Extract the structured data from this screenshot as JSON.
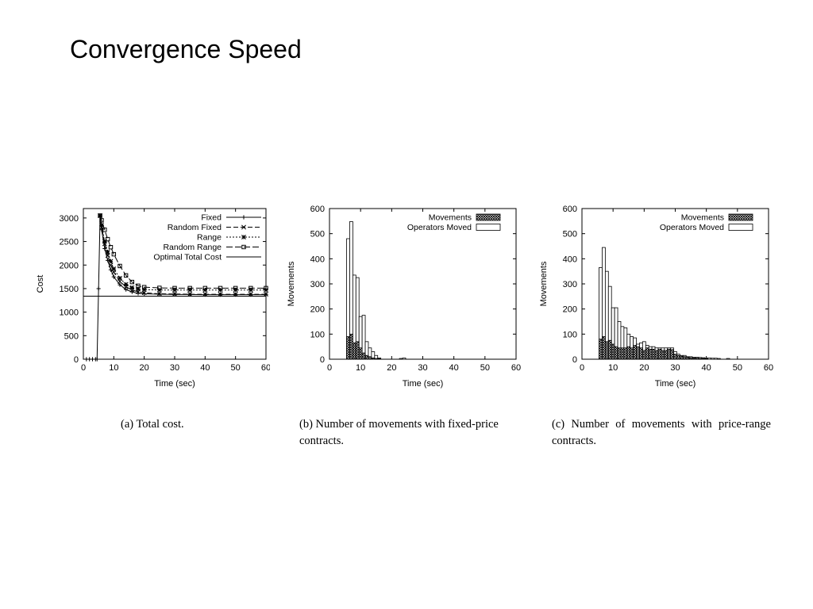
{
  "title": "Convergence Speed",
  "chart_data": [
    {
      "id": "a",
      "type": "line",
      "title": "",
      "xlabel": "Time (sec)",
      "ylabel": "Cost",
      "xlim": [
        0,
        60
      ],
      "ylim": [
        0,
        3200
      ],
      "xticks": [
        0,
        10,
        20,
        30,
        40,
        50,
        60
      ],
      "yticks": [
        0,
        500,
        1000,
        1500,
        2000,
        2500,
        3000
      ],
      "legend_position": "top-right",
      "grid": false,
      "series": [
        {
          "name": "Fixed",
          "marker": "plus",
          "dash": "none",
          "x": [
            1,
            2,
            3,
            4,
            4.5,
            5,
            5.5,
            6,
            7,
            8,
            9,
            10,
            12,
            14,
            16,
            18,
            20,
            25,
            30,
            35,
            40,
            45,
            50,
            55,
            60
          ],
          "y": [
            0,
            0,
            0,
            0,
            0,
            1500,
            3050,
            2750,
            2350,
            2100,
            1900,
            1750,
            1580,
            1480,
            1430,
            1400,
            1390,
            1380,
            1375,
            1375,
            1370,
            1370,
            1370,
            1370,
            1370
          ]
        },
        {
          "name": "Random Fixed",
          "marker": "cross",
          "dash": "6,3",
          "x": [
            5.5,
            6,
            7,
            8,
            9,
            10,
            12,
            14,
            16,
            18,
            20,
            25,
            30,
            35,
            40,
            45,
            50,
            55,
            60
          ],
          "y": [
            3050,
            2800,
            2450,
            2200,
            2000,
            1850,
            1650,
            1540,
            1470,
            1430,
            1410,
            1390,
            1385,
            1380,
            1380,
            1380,
            1380,
            1380,
            1380
          ]
        },
        {
          "name": "Range",
          "marker": "star",
          "dash": "2,2",
          "x": [
            5.5,
            6,
            7,
            8,
            9,
            10,
            12,
            14,
            16,
            18,
            20,
            25,
            30,
            35,
            40,
            45,
            50,
            55,
            60
          ],
          "y": [
            3050,
            2850,
            2500,
            2280,
            2080,
            1920,
            1720,
            1590,
            1520,
            1490,
            1480,
            1470,
            1470,
            1470,
            1470,
            1470,
            1470,
            1470,
            1470
          ]
        },
        {
          "name": "Random Range",
          "marker": "square",
          "dash": "8,3",
          "x": [
            5.5,
            6,
            7,
            8,
            9,
            10,
            12,
            14,
            16,
            18,
            20,
            25,
            30,
            35,
            40,
            45,
            50,
            55,
            60
          ],
          "y": [
            3050,
            2950,
            2750,
            2550,
            2380,
            2230,
            1980,
            1780,
            1640,
            1560,
            1530,
            1515,
            1510,
            1510,
            1510,
            1510,
            1510,
            1510,
            1510
          ]
        },
        {
          "name": "Optimal Total Cost",
          "marker": "none",
          "dash": "none",
          "x": [
            0,
            60
          ],
          "y": [
            1340,
            1340
          ]
        }
      ]
    },
    {
      "id": "b",
      "type": "bar",
      "title": "",
      "xlabel": "Time (sec)",
      "ylabel": "Movements",
      "xlim": [
        0,
        60
      ],
      "ylim": [
        0,
        600
      ],
      "xticks": [
        0,
        10,
        20,
        30,
        40,
        50,
        60
      ],
      "yticks": [
        0,
        100,
        200,
        300,
        400,
        500,
        600
      ],
      "legend_position": "top-right",
      "grid": false,
      "bin_width": 1,
      "series": [
        {
          "name": "Movements",
          "style": "hatched",
          "x": [
            6,
            7,
            8,
            9,
            10,
            11,
            12,
            13,
            14,
            15,
            16
          ],
          "values": [
            90,
            100,
            65,
            70,
            45,
            25,
            15,
            10,
            5,
            3,
            2
          ]
        },
        {
          "name": "Operators Moved",
          "style": "outline",
          "x": [
            6,
            7,
            8,
            9,
            10,
            11,
            12,
            13,
            14,
            15,
            16,
            23,
            24
          ],
          "values": [
            480,
            548,
            335,
            325,
            170,
            175,
            70,
            45,
            30,
            15,
            5,
            3,
            5
          ]
        }
      ]
    },
    {
      "id": "c",
      "type": "bar",
      "title": "",
      "xlabel": "Time (sec)",
      "ylabel": "Movements",
      "xlim": [
        0,
        60
      ],
      "ylim": [
        0,
        600
      ],
      "xticks": [
        0,
        10,
        20,
        30,
        40,
        50,
        60
      ],
      "yticks": [
        0,
        100,
        200,
        300,
        400,
        500,
        600
      ],
      "legend_position": "top-right",
      "grid": false,
      "bin_width": 1,
      "series": [
        {
          "name": "Movements",
          "style": "hatched",
          "x": [
            6,
            7,
            8,
            9,
            10,
            11,
            12,
            13,
            14,
            15,
            16,
            17,
            18,
            19,
            20,
            21,
            22,
            23,
            24,
            25,
            26,
            27,
            28,
            29,
            30,
            31,
            32,
            33,
            34,
            35,
            36,
            37,
            38,
            39,
            40
          ],
          "values": [
            80,
            90,
            70,
            75,
            60,
            50,
            45,
            45,
            45,
            50,
            45,
            55,
            50,
            45,
            35,
            45,
            40,
            40,
            35,
            40,
            35,
            35,
            40,
            38,
            20,
            15,
            12,
            10,
            8,
            6,
            5,
            4,
            3,
            3,
            2
          ]
        },
        {
          "name": "Operators Moved",
          "style": "outline",
          "x": [
            6,
            7,
            8,
            9,
            10,
            11,
            12,
            13,
            14,
            15,
            16,
            17,
            18,
            19,
            20,
            21,
            22,
            23,
            24,
            25,
            26,
            27,
            28,
            29,
            30,
            31,
            32,
            33,
            34,
            35,
            36,
            37,
            38,
            39,
            40,
            41,
            42,
            43,
            44,
            47
          ],
          "values": [
            365,
            445,
            350,
            290,
            205,
            205,
            150,
            130,
            125,
            100,
            90,
            85,
            60,
            65,
            70,
            55,
            50,
            50,
            45,
            45,
            45,
            45,
            45,
            45,
            30,
            20,
            15,
            15,
            10,
            10,
            8,
            8,
            7,
            6,
            5,
            5,
            4,
            4,
            3,
            3
          ]
        }
      ]
    }
  ],
  "captions": {
    "a": "(a) Total cost.",
    "b": "(b) Number of movements with fixed-price contracts.",
    "c": "(c) Number of movements with price-range contracts."
  }
}
